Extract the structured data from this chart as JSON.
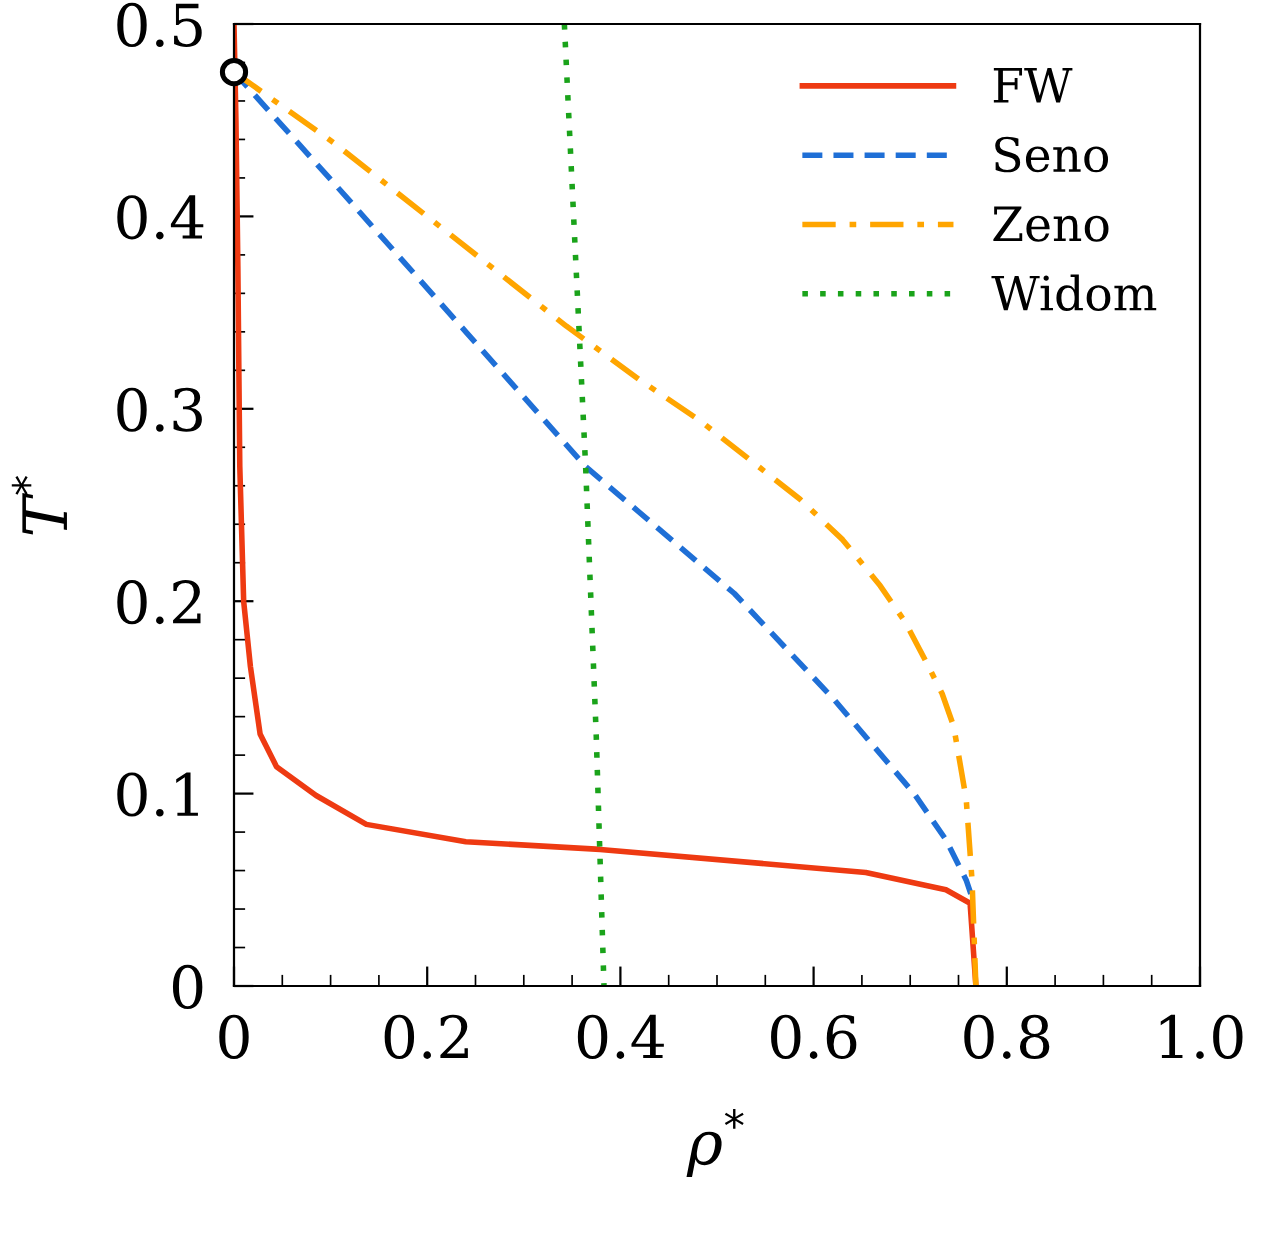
{
  "chart_data": {
    "type": "line",
    "xlabel": "ρ$^{*}$",
    "ylabel": "T$^{*}$",
    "xlim": [
      0,
      1.0
    ],
    "ylim": [
      0,
      0.5
    ],
    "xticks": [
      {
        "value": 0,
        "label": "0"
      },
      0.2,
      0.4,
      0.6,
      0.8,
      {
        "value": 1.0,
        "label": "1.0"
      }
    ],
    "yticks": [
      {
        "value": 0,
        "label": "0"
      },
      0.1,
      0.2,
      0.3,
      0.4,
      0.5
    ],
    "grid": false,
    "legend": "top right",
    "series": [
      {
        "name": "FW",
        "color": "#ee3a12",
        "line_style": "solid",
        "x": [
          0.0,
          0.002,
          0.004,
          0.006,
          0.01,
          0.017,
          0.027,
          0.044,
          0.085,
          0.137,
          0.24,
          0.379,
          0.654,
          0.737,
          0.762,
          0.768
        ],
        "values": [
          0.5,
          0.45,
          0.374,
          0.27,
          0.2,
          0.166,
          0.131,
          0.114,
          0.099,
          0.084,
          0.075,
          0.071,
          0.059,
          0.05,
          0.043,
          0.0
        ]
      },
      {
        "name": "Seno",
        "color": "#1f6fd6",
        "line_style": "dashed",
        "x": [
          0.0,
          0.104,
          0.24,
          0.364,
          0.518,
          0.621,
          0.704,
          0.737,
          0.758,
          0.764
        ],
        "values": [
          0.475,
          0.417,
          0.34,
          0.27,
          0.204,
          0.149,
          0.1,
          0.076,
          0.055,
          0.046
        ]
      },
      {
        "name": "Zeno",
        "color": "#ffa500",
        "line_style": "dashdot",
        "x": [
          0.0,
          0.104,
          0.344,
          0.42,
          0.482,
          0.586,
          0.63,
          0.669,
          0.695,
          0.716,
          0.733,
          0.745,
          0.758,
          0.764,
          0.768
        ],
        "values": [
          0.475,
          0.438,
          0.343,
          0.315,
          0.294,
          0.253,
          0.232,
          0.208,
          0.189,
          0.169,
          0.152,
          0.135,
          0.097,
          0.055,
          0.0
        ]
      },
      {
        "name": "Widom",
        "color": "#1aa31a",
        "line_style": "dotted",
        "x": [
          0.342,
          0.364,
          0.375,
          0.383
        ],
        "values": [
          0.5,
          0.27,
          0.13,
          0.0
        ]
      },
      {
        "type": "scatter",
        "marker": "circle",
        "color": "#000000",
        "x": [
          0.0
        ],
        "values": [
          0.475
        ]
      }
    ]
  }
}
